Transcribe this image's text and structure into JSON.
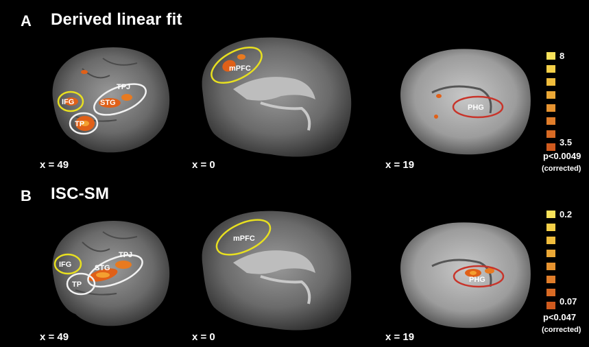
{
  "panels": [
    {
      "letter": "A",
      "title": "Derived linear fit",
      "slices": [
        {
          "coord": "x = 49",
          "labels": [
            "IFG",
            "STG",
            "TPJ",
            "TP"
          ]
        },
        {
          "coord": "x = 0",
          "labels": [
            "mPFC"
          ]
        },
        {
          "coord": "x = 19",
          "labels": [
            "PHG"
          ]
        }
      ],
      "scale": {
        "max": "8",
        "min": "3.5",
        "pvalue": "p<0.0049",
        "note": "(corrected)"
      }
    },
    {
      "letter": "B",
      "title": "ISC-SM",
      "slices": [
        {
          "coord": "x = 49",
          "labels": [
            "IFG",
            "STG",
            "TPJ",
            "TP"
          ]
        },
        {
          "coord": "x = 0",
          "labels": [
            "mPFC"
          ]
        },
        {
          "coord": "x = 19",
          "labels": [
            "PHG"
          ]
        }
      ],
      "scale": {
        "max": "0.2",
        "min": "0.07",
        "pvalue": "p<0.047",
        "note": "(corrected)"
      }
    }
  ],
  "colors": {
    "roi_yellow": "#e8e020",
    "roi_white": "#f2f2f2",
    "roi_red": "#c8342a",
    "activation": "#e06018",
    "colorbar": [
      "#f8e25a",
      "#f5d048",
      "#f0bd3c",
      "#eba836",
      "#e69330",
      "#e07d2a",
      "#d86a24",
      "#d05a1e"
    ]
  }
}
